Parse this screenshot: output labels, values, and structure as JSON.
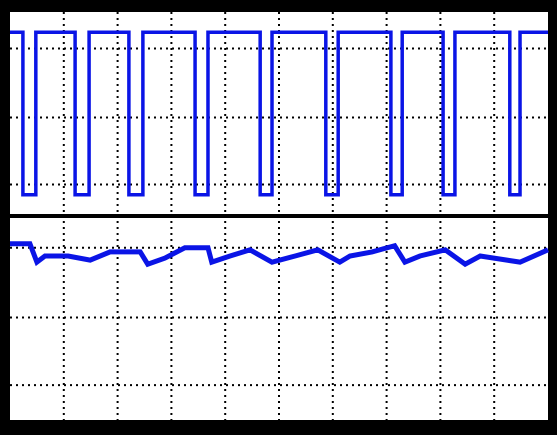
{
  "chart_data": [
    {
      "type": "line",
      "color": "#0a14e6",
      "grid": true,
      "xlim": [
        0,
        100
      ],
      "ylim": [
        0,
        100
      ],
      "xticks": [
        10,
        20,
        30,
        40,
        50,
        60,
        70,
        80,
        90
      ],
      "yticks": [
        15,
        48,
        82
      ],
      "x": [
        0,
        2.4,
        2.4,
        4.8,
        4.8,
        12.1,
        12.1,
        14.7,
        14.7,
        22.1,
        22.1,
        24.7,
        24.7,
        34.4,
        34.4,
        36.8,
        36.8,
        46.5,
        46.5,
        48.7,
        48.7,
        58.7,
        58.7,
        61,
        61,
        70.8,
        70.8,
        72.9,
        72.9,
        80.5,
        80.5,
        82.7,
        82.7,
        92.9,
        92.9,
        94.8,
        94.8,
        100
      ],
      "values": [
        90,
        90,
        10,
        10,
        90,
        90,
        10,
        10,
        90,
        90,
        10,
        10,
        90,
        90,
        10,
        10,
        90,
        90,
        10,
        10,
        90,
        90,
        10,
        10,
        90,
        90,
        10,
        10,
        90,
        90,
        10,
        10,
        90,
        90,
        10,
        10,
        90,
        90
      ]
    },
    {
      "type": "line",
      "color": "#0a14e6",
      "grid": true,
      "xlim": [
        0,
        100
      ],
      "ylim": [
        0,
        100
      ],
      "xticks": [
        10,
        20,
        30,
        40,
        50,
        60,
        70,
        80,
        90
      ],
      "yticks": [
        17,
        50,
        84
      ],
      "x": [
        0,
        3.7,
        5,
        6.5,
        10.8,
        14.9,
        18.6,
        24.2,
        25.6,
        28.8,
        32.5,
        36.8,
        37.5,
        40.9,
        44.6,
        48.7,
        53,
        57.2,
        61.3,
        63.2,
        67.3,
        71.5,
        73.4,
        76.2,
        80.9,
        84.6,
        87.4,
        94.8,
        100
      ],
      "values": [
        86,
        86,
        77,
        80,
        80,
        78,
        82,
        82,
        76,
        79,
        84,
        84,
        77,
        80,
        83,
        77,
        80,
        83,
        77,
        80,
        82,
        85,
        77,
        80,
        83,
        76,
        80,
        77,
        83
      ]
    }
  ]
}
